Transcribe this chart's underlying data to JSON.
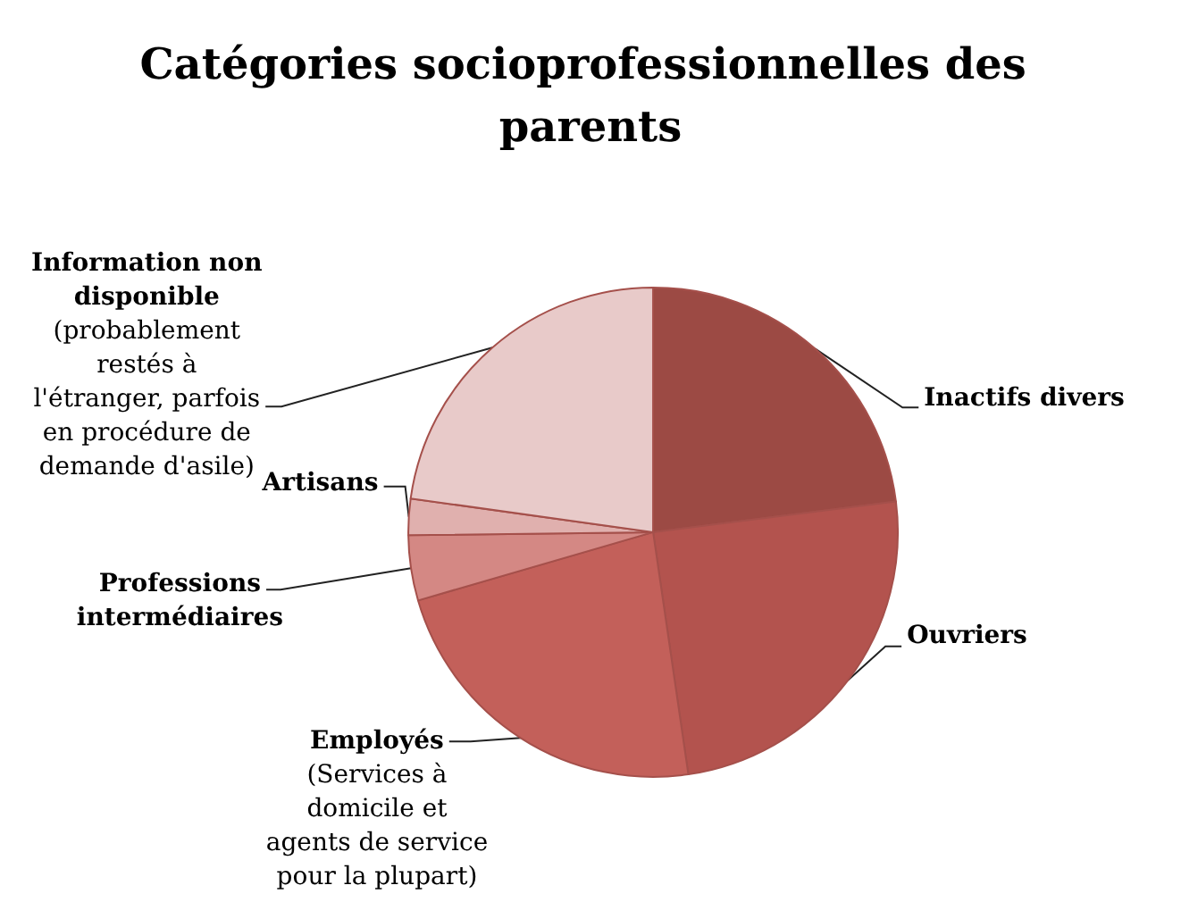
{
  "chart_data": {
    "type": "pie",
    "title": "Catégories socioprofessionnelles des parents",
    "categories": [
      "Inactifs divers",
      "Ouvriers",
      "Employés (Services à domicile et agents de service pour la plupart)",
      "Professions intermédiaires",
      "Artisans",
      "Information non disponible (probablement restés à l'étranger, parfois en procédure de demande d'asile)"
    ],
    "values": [
      23.0,
      24.7,
      22.8,
      4.3,
      2.4,
      22.8
    ],
    "colors": [
      "#9c4a44",
      "#b3534e",
      "#c3605a",
      "#d48884",
      "#e0b0ae",
      "#e8cac9"
    ]
  }
}
